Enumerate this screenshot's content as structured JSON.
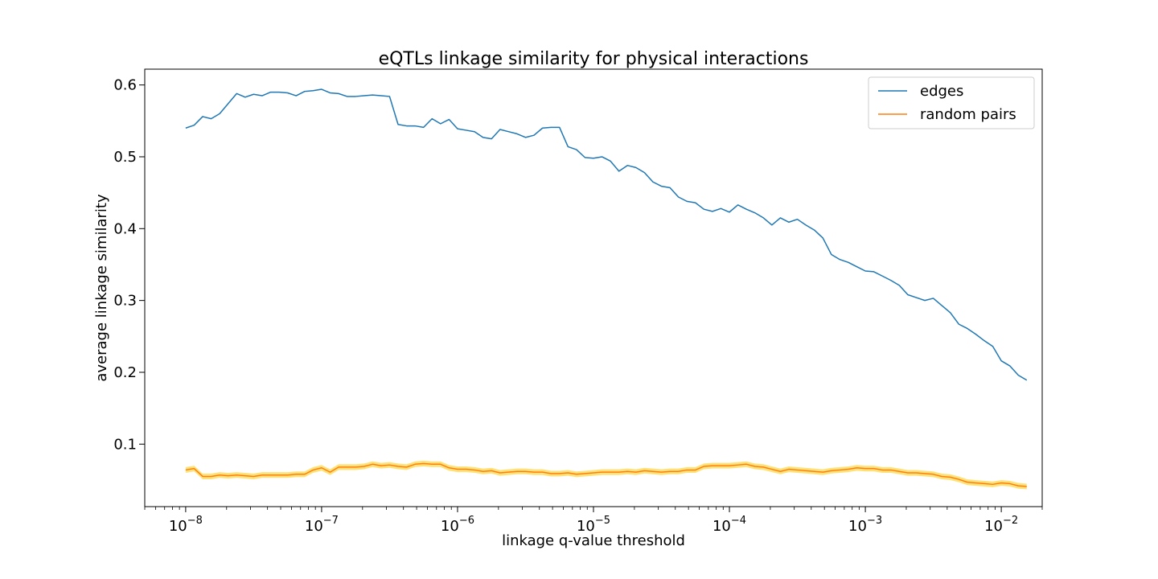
{
  "chart_data": {
    "type": "line",
    "title": "eQTLs linkage similarity for physical interactions",
    "xlabel": "linkage q-value threshold",
    "ylabel": "average linkage similarity",
    "xscale": "log",
    "xlim": [
      5e-09,
      0.02
    ],
    "ylim": [
      0.013,
      0.622
    ],
    "x_ticks": [
      {
        "value": 1e-08,
        "base": "10",
        "exp": "−8"
      },
      {
        "value": 1e-07,
        "base": "10",
        "exp": "−7"
      },
      {
        "value": 1e-06,
        "base": "10",
        "exp": "−6"
      },
      {
        "value": 1e-05,
        "base": "10",
        "exp": "−5"
      },
      {
        "value": 0.0001,
        "base": "10",
        "exp": "−4"
      },
      {
        "value": 0.001,
        "base": "10",
        "exp": "−3"
      },
      {
        "value": 0.01,
        "base": "10",
        "exp": "−2"
      }
    ],
    "y_ticks": [
      {
        "value": 0.1,
        "label": "0.1"
      },
      {
        "value": 0.2,
        "label": "0.2"
      },
      {
        "value": 0.3,
        "label": "0.3"
      },
      {
        "value": 0.4,
        "label": "0.4"
      },
      {
        "value": 0.5,
        "label": "0.5"
      },
      {
        "value": 0.6,
        "label": "0.6"
      }
    ],
    "x_log_start": -8,
    "x_log_step": 0.0625,
    "legend_position": "upper right",
    "grid": false,
    "series": [
      {
        "name": "edges",
        "color": "#1f77b4",
        "values": [
          0.54,
          0.544,
          0.556,
          0.553,
          0.56,
          0.574,
          0.588,
          0.583,
          0.587,
          0.585,
          0.59,
          0.59,
          0.589,
          0.585,
          0.591,
          0.592,
          0.594,
          0.589,
          0.588,
          0.584,
          0.584,
          0.585,
          0.586,
          0.585,
          0.584,
          0.545,
          0.543,
          0.543,
          0.541,
          0.553,
          0.546,
          0.552,
          0.539,
          0.537,
          0.535,
          0.527,
          0.525,
          0.538,
          0.535,
          0.532,
          0.527,
          0.53,
          0.54,
          0.541,
          0.541,
          0.514,
          0.51,
          0.499,
          0.498,
          0.5,
          0.494,
          0.48,
          0.488,
          0.485,
          0.478,
          0.465,
          0.459,
          0.457,
          0.444,
          0.438,
          0.436,
          0.427,
          0.424,
          0.428,
          0.423,
          0.433,
          0.427,
          0.422,
          0.415,
          0.405,
          0.415,
          0.409,
          0.413,
          0.405,
          0.398,
          0.387,
          0.364,
          0.357,
          0.353,
          0.347,
          0.341,
          0.34,
          0.334,
          0.328,
          0.321,
          0.308,
          0.304,
          0.3,
          0.303,
          0.293,
          0.283,
          0.267,
          0.261,
          0.253,
          0.244,
          0.236,
          0.216,
          0.209,
          0.196,
          0.189
        ]
      },
      {
        "name": "random pairs",
        "color": "#ff7f0e",
        "band_color": "#ffd94d",
        "band_halfwidth": 0.004,
        "values": [
          0.064,
          0.066,
          0.055,
          0.055,
          0.057,
          0.056,
          0.057,
          0.056,
          0.055,
          0.057,
          0.057,
          0.057,
          0.057,
          0.058,
          0.058,
          0.064,
          0.067,
          0.061,
          0.068,
          0.068,
          0.068,
          0.069,
          0.072,
          0.07,
          0.071,
          0.069,
          0.068,
          0.072,
          0.073,
          0.072,
          0.072,
          0.067,
          0.065,
          0.065,
          0.064,
          0.062,
          0.063,
          0.06,
          0.061,
          0.062,
          0.062,
          0.061,
          0.061,
          0.059,
          0.059,
          0.06,
          0.058,
          0.059,
          0.06,
          0.061,
          0.061,
          0.061,
          0.062,
          0.061,
          0.063,
          0.062,
          0.061,
          0.062,
          0.062,
          0.064,
          0.064,
          0.069,
          0.07,
          0.07,
          0.07,
          0.071,
          0.072,
          0.069,
          0.068,
          0.065,
          0.062,
          0.065,
          0.064,
          0.063,
          0.062,
          0.061,
          0.063,
          0.064,
          0.065,
          0.067,
          0.066,
          0.066,
          0.064,
          0.064,
          0.062,
          0.06,
          0.06,
          0.059,
          0.058,
          0.055,
          0.054,
          0.051,
          0.047,
          0.046,
          0.045,
          0.044,
          0.046,
          0.045,
          0.042,
          0.041
        ]
      }
    ]
  }
}
